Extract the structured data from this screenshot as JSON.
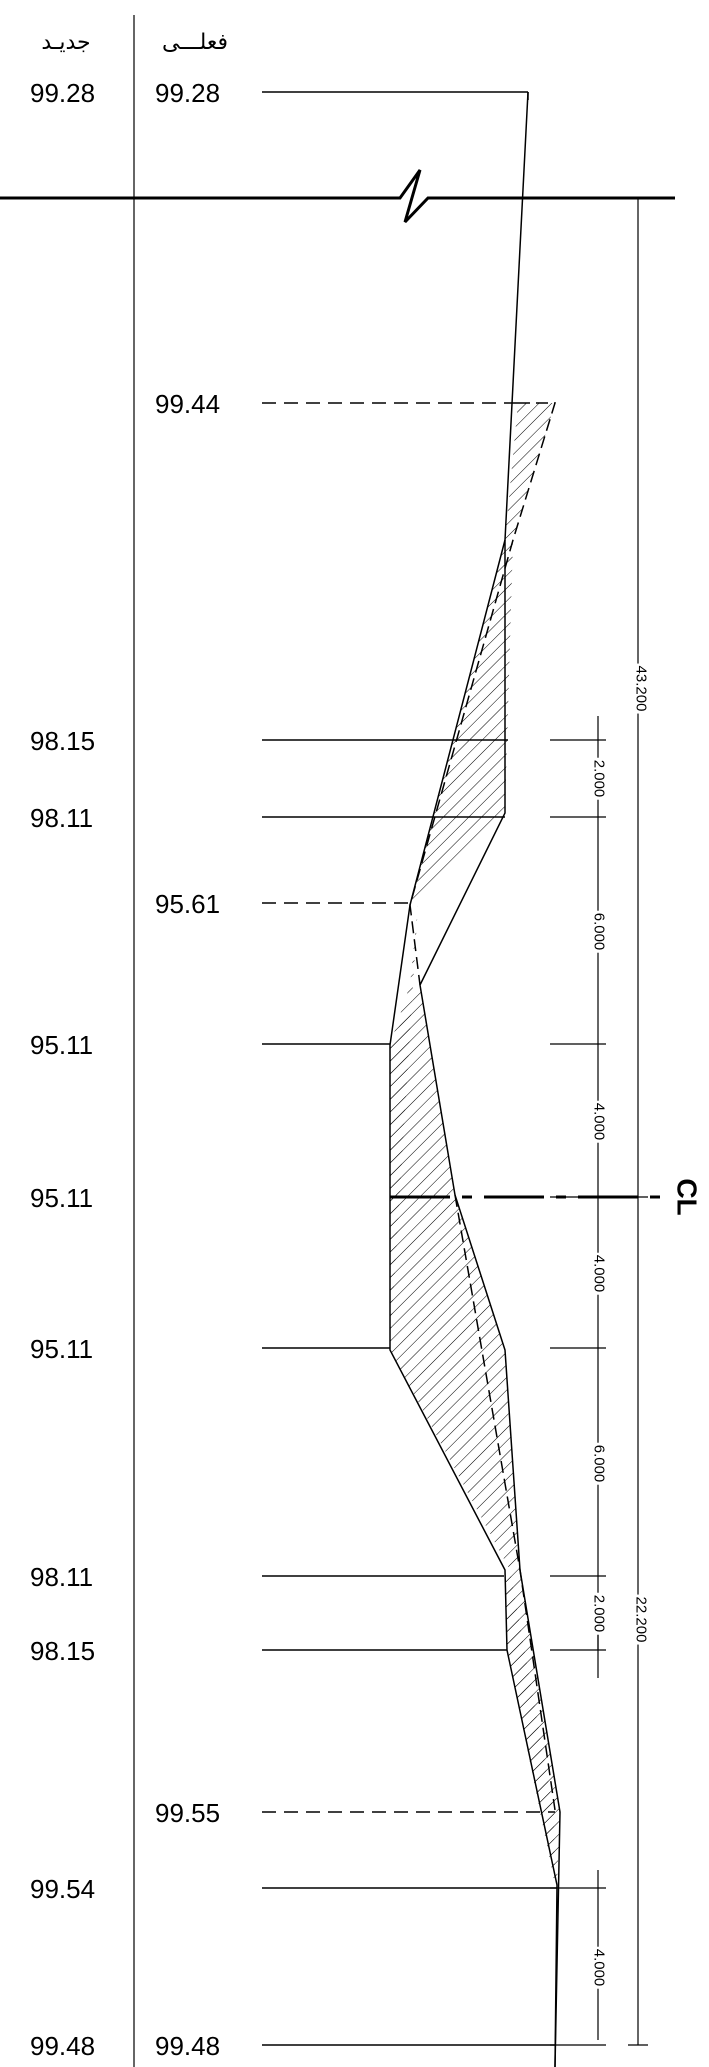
{
  "headers": {
    "new": "جديـد",
    "existing": "فعلـــى"
  },
  "top": {
    "new": "99.28",
    "existing": "99.28"
  },
  "existing_levels": [
    "99.44",
    "95.61",
    "99.55"
  ],
  "new_levels": [
    "98.15",
    "98.11",
    "95.11",
    "95.11",
    "95.11",
    "98.11",
    "98.15",
    "99.54"
  ],
  "bottom": {
    "new": "99.48",
    "existing": "99.48"
  },
  "dimensions": {
    "overall_upper": "43.200",
    "overall_lower": "22.200",
    "seg_1": "2.000",
    "seg_2": "6.000",
    "seg_3": "4.000",
    "seg_4": "4.000",
    "seg_5": "6.000",
    "seg_6": "2.000",
    "seg_7": "4.000"
  },
  "centerline": "CL"
}
